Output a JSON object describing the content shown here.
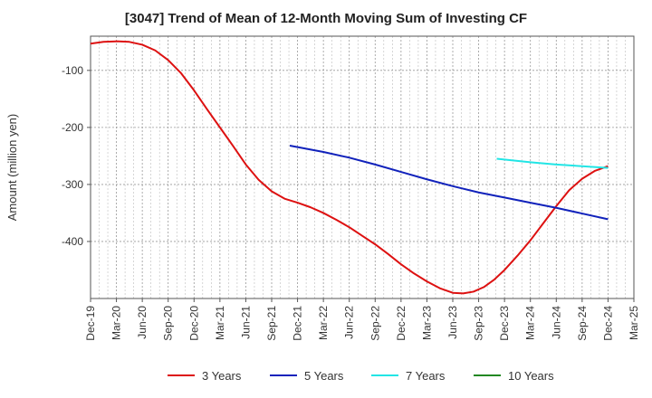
{
  "chart_data": {
    "type": "line",
    "title": "[3047]  Trend of Mean of 12-Month Moving Sum of Investing CF",
    "xlabel": "",
    "ylabel": "Amount (million yen)",
    "ylim": [
      -500,
      -40
    ],
    "yticks": [
      -100,
      -200,
      -300,
      -400
    ],
    "x_tick_labels": [
      "Dec-19",
      "Mar-20",
      "Jun-20",
      "Sep-20",
      "Dec-20",
      "Mar-21",
      "Jun-21",
      "Sep-21",
      "Dec-21",
      "Mar-22",
      "Jun-22",
      "Sep-22",
      "Dec-22",
      "Mar-23",
      "Jun-23",
      "Sep-23",
      "Dec-23",
      "Mar-24",
      "Jun-24",
      "Sep-24",
      "Dec-24",
      "Mar-25"
    ],
    "grid": true,
    "legend_position": "bottom",
    "series": [
      {
        "name": "3 Years",
        "color": "#dd1111",
        "points": [
          {
            "x": 0,
            "y": -53
          },
          {
            "x": 0.5,
            "y": -50
          },
          {
            "x": 1,
            "y": -49
          },
          {
            "x": 1.5,
            "y": -50
          },
          {
            "x": 2,
            "y": -55
          },
          {
            "x": 2.5,
            "y": -65
          },
          {
            "x": 3,
            "y": -82
          },
          {
            "x": 3.5,
            "y": -105
          },
          {
            "x": 4,
            "y": -135
          },
          {
            "x": 4.5,
            "y": -168
          },
          {
            "x": 5,
            "y": -200
          },
          {
            "x": 5.5,
            "y": -232
          },
          {
            "x": 6,
            "y": -265
          },
          {
            "x": 6.5,
            "y": -292
          },
          {
            "x": 7,
            "y": -312
          },
          {
            "x": 7.5,
            "y": -325
          },
          {
            "x": 8,
            "y": -332
          },
          {
            "x": 8.5,
            "y": -340
          },
          {
            "x": 9,
            "y": -350
          },
          {
            "x": 9.5,
            "y": -362
          },
          {
            "x": 10,
            "y": -375
          },
          {
            "x": 10.5,
            "y": -390
          },
          {
            "x": 11,
            "y": -405
          },
          {
            "x": 11.5,
            "y": -422
          },
          {
            "x": 12,
            "y": -440
          },
          {
            "x": 12.5,
            "y": -456
          },
          {
            "x": 13,
            "y": -470
          },
          {
            "x": 13.5,
            "y": -482
          },
          {
            "x": 14,
            "y": -490
          },
          {
            "x": 14.4,
            "y": -491
          },
          {
            "x": 14.8,
            "y": -488
          },
          {
            "x": 15.2,
            "y": -480
          },
          {
            "x": 15.6,
            "y": -467
          },
          {
            "x": 16,
            "y": -450
          },
          {
            "x": 16.5,
            "y": -425
          },
          {
            "x": 17,
            "y": -398
          },
          {
            "x": 17.5,
            "y": -368
          },
          {
            "x": 18,
            "y": -338
          },
          {
            "x": 18.5,
            "y": -310
          },
          {
            "x": 19,
            "y": -290
          },
          {
            "x": 19.5,
            "y": -276
          },
          {
            "x": 20,
            "y": -268
          }
        ]
      },
      {
        "name": "5 Years",
        "color": "#1122bb",
        "points": [
          {
            "x": 7.7,
            "y": -232
          },
          {
            "x": 9,
            "y": -243
          },
          {
            "x": 10,
            "y": -253
          },
          {
            "x": 11,
            "y": -265
          },
          {
            "x": 12,
            "y": -278
          },
          {
            "x": 13,
            "y": -291
          },
          {
            "x": 14,
            "y": -303
          },
          {
            "x": 15,
            "y": -314
          },
          {
            "x": 16,
            "y": -323
          },
          {
            "x": 17,
            "y": -332
          },
          {
            "x": 18,
            "y": -341
          },
          {
            "x": 19,
            "y": -351
          },
          {
            "x": 20,
            "y": -361
          }
        ]
      },
      {
        "name": "7 Years",
        "color": "#22e5e5",
        "points": [
          {
            "x": 15.7,
            "y": -255
          },
          {
            "x": 17,
            "y": -261
          },
          {
            "x": 18,
            "y": -265
          },
          {
            "x": 19,
            "y": -268
          },
          {
            "x": 20,
            "y": -271
          }
        ]
      },
      {
        "name": "10 Years",
        "color": "#228822",
        "points": []
      }
    ]
  }
}
